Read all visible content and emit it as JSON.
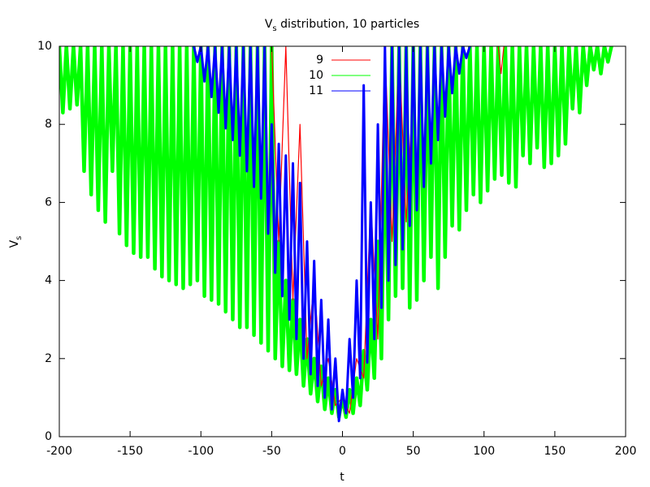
{
  "chart_data": {
    "type": "line",
    "title": [
      "V",
      "s",
      " distribution, 10 particles"
    ],
    "xlabel": "t",
    "ylabel": [
      "V",
      "s"
    ],
    "xlim": [
      -200,
      200
    ],
    "xticks": [
      -200,
      -150,
      -100,
      -50,
      0,
      50,
      100,
      150,
      200
    ],
    "ylim": [
      0,
      10
    ],
    "yticks": [
      0,
      2,
      4,
      6,
      8,
      10
    ],
    "grid": false,
    "legend": "top",
    "series": [
      {
        "name": "9",
        "color": "#ff0000",
        "x": [
          -50,
          -45,
          -40,
          -35,
          -30,
          -25,
          -20,
          -15,
          -10,
          -5,
          0,
          5,
          10,
          15,
          20,
          25,
          30,
          35,
          40,
          45,
          50,
          80,
          110,
          112,
          114
        ],
        "values": [
          10,
          5,
          10,
          3.5,
          8,
          2,
          4,
          1.3,
          2,
          0.8,
          1,
          0.6,
          2,
          1.5,
          6,
          2.5,
          10,
          5,
          10,
          5.5,
          9,
          null,
          10,
          9.3,
          10
        ]
      },
      {
        "name": "10",
        "color": "#00ff00",
        "x": [
          -200,
          -197.5,
          -195,
          -192.5,
          -190,
          -187.5,
          -185,
          -182.5,
          -180,
          -177.5,
          -175,
          -172.5,
          -170,
          -167.5,
          -165,
          -162.5,
          -160,
          -157.5,
          -155,
          -152.5,
          -150,
          -147.5,
          -145,
          -142.5,
          -140,
          -137.5,
          -135,
          -132.5,
          -130,
          -127.5,
          -125,
          -122.5,
          -120,
          -117.5,
          -115,
          -112.5,
          -110,
          -107.5,
          -105,
          -102.5,
          -100,
          -97.5,
          -95,
          -92.5,
          -90,
          -87.5,
          -85,
          -82.5,
          -80,
          -77.5,
          -75,
          -72.5,
          -70,
          -67.5,
          -65,
          -62.5,
          -60,
          -57.5,
          -55,
          -52.5,
          -50,
          -47.5,
          -45,
          -42.5,
          -40,
          -37.5,
          -35,
          -32.5,
          -30,
          -27.5,
          -25,
          -22.5,
          -20,
          -17.5,
          -15,
          -12.5,
          -10,
          -7.5,
          -5,
          -2.5,
          0,
          2.5,
          5,
          7.5,
          10,
          12.5,
          15,
          17.5,
          20,
          22.5,
          25,
          27.5,
          30,
          32.5,
          35,
          37.5,
          40,
          42.5,
          45,
          47.5,
          50,
          52.5,
          55,
          57.5,
          60,
          62.5,
          65,
          67.5,
          70,
          72.5,
          75,
          77.5,
          80,
          82.5,
          85,
          87.5,
          90,
          92.5,
          95,
          97.5,
          100,
          102.5,
          105,
          107.5,
          110,
          112.5,
          115,
          117.5,
          120,
          122.5,
          125,
          127.5,
          130,
          132.5,
          135,
          137.5,
          140,
          142.5,
          145,
          147.5,
          150,
          152.5,
          155,
          157.5,
          160,
          162.5,
          165,
          167.5,
          170,
          172.5,
          175,
          177.5,
          180,
          182.5,
          185,
          187.5,
          190
        ],
        "values": [
          10,
          8.3,
          10,
          8.4,
          10,
          8.5,
          10,
          6.8,
          10,
          6.2,
          10,
          5.8,
          10,
          5.5,
          10,
          6.8,
          10,
          5.2,
          10,
          4.9,
          10,
          4.7,
          10,
          4.6,
          10,
          4.6,
          10,
          4.3,
          10,
          4.1,
          10,
          4.0,
          10,
          3.9,
          10,
          3.8,
          10,
          3.9,
          10,
          4.0,
          10,
          3.6,
          10,
          3.5,
          10,
          3.4,
          10,
          3.2,
          10,
          3.0,
          10,
          2.8,
          10,
          2.8,
          10,
          2.6,
          10,
          2.4,
          10,
          2.2,
          10,
          2.0,
          5,
          1.8,
          4,
          1.7,
          3.5,
          1.6,
          3,
          1.3,
          2.5,
          1.1,
          2,
          0.9,
          1.8,
          0.7,
          1.5,
          0.6,
          1.2,
          0.5,
          1.0,
          0.5,
          1.2,
          0.6,
          1.5,
          0.8,
          2.2,
          1.2,
          3,
          1.5,
          5,
          2.0,
          8,
          3.0,
          10,
          3.6,
          10,
          3.8,
          10,
          3.3,
          10,
          3.5,
          10,
          4.0,
          10,
          4.6,
          10,
          3.8,
          10,
          4.6,
          10,
          5.4,
          10,
          5.3,
          10,
          5.8,
          10,
          6.2,
          10,
          6.0,
          10,
          6.3,
          10,
          6.6,
          10,
          6.7,
          10,
          6.5,
          10,
          6.4,
          10,
          7.2,
          10,
          7.0,
          10,
          7.4,
          10,
          6.9,
          10,
          7.0,
          10,
          7.2,
          10,
          7.5,
          10,
          8.4,
          10,
          8.3,
          10,
          9.0,
          10,
          9.4,
          10,
          9.3,
          10,
          9.6,
          10
        ]
      },
      {
        "name": "11",
        "color": "#0000ff",
        "x": [
          -105,
          -102.5,
          -100,
          -97.5,
          -95,
          -92.5,
          -90,
          -87.5,
          -85,
          -82.5,
          -80,
          -77.5,
          -75,
          -72.5,
          -70,
          -67.5,
          -65,
          -62.5,
          -60,
          -57.5,
          -55,
          -52.5,
          -50,
          -47.5,
          -45,
          -42.5,
          -40,
          -37.5,
          -35,
          -32.5,
          -30,
          -27.5,
          -25,
          -22.5,
          -20,
          -17.5,
          -15,
          -12.5,
          -10,
          -7.5,
          -5,
          -2.5,
          0,
          2.5,
          5,
          7.5,
          10,
          12.5,
          15,
          17.5,
          20,
          22.5,
          25,
          27.5,
          30,
          32.5,
          35,
          37.5,
          40,
          42.5,
          45,
          47.5,
          50,
          52.5,
          55,
          57.5,
          60,
          62.5,
          65,
          67.5,
          70,
          72.5,
          75,
          77.5,
          80,
          82.5,
          85,
          87.5,
          90
        ],
        "values": [
          10,
          9.6,
          10,
          9.1,
          10,
          8.7,
          10,
          8.3,
          10,
          7.9,
          10,
          7.6,
          10,
          7.2,
          10,
          6.8,
          10,
          6.4,
          10,
          6.1,
          10,
          5.2,
          8,
          4.2,
          7.5,
          3.6,
          7.2,
          3.0,
          7,
          2.5,
          6.5,
          2.0,
          5,
          1.6,
          4.5,
          1.3,
          3.5,
          1.0,
          3,
          0.7,
          2,
          0.4,
          1.2,
          0.6,
          2.5,
          1.0,
          4,
          1.5,
          9,
          1.9,
          6,
          2.5,
          8,
          3.3,
          10,
          4.0,
          10,
          4.4,
          10,
          4.8,
          10,
          5.4,
          10,
          5.8,
          10,
          6.4,
          10,
          7.0,
          10,
          7.6,
          10,
          8.2,
          10,
          8.8,
          10,
          9.3,
          10,
          9.7,
          10
        ]
      }
    ]
  }
}
